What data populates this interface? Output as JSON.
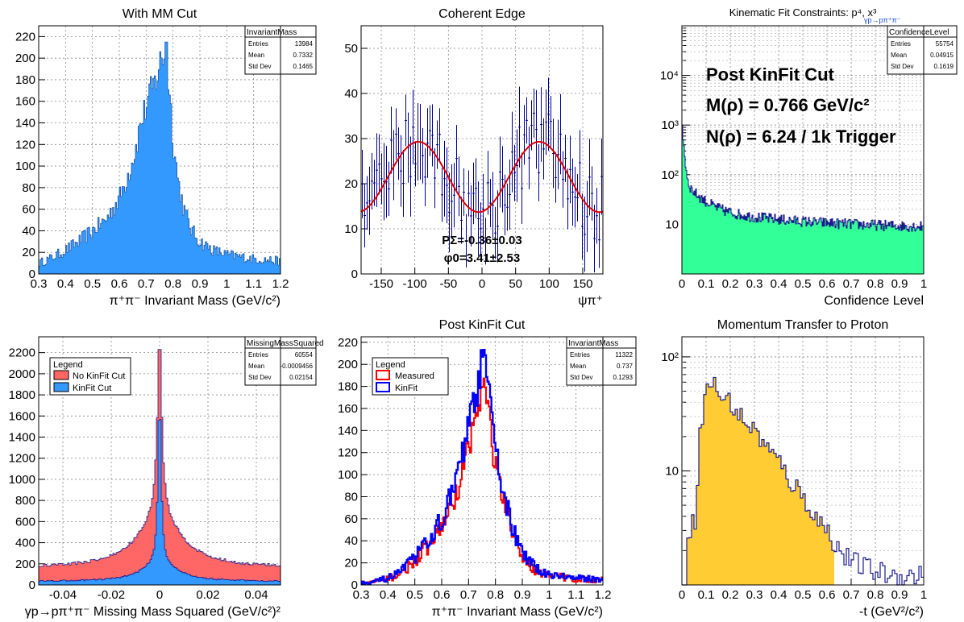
{
  "chart_data": [
    {
      "type": "bar",
      "title": "With MM Cut",
      "xlabel": "π⁺π⁻ Invariant Mass (GeV/c²)",
      "ylabel": "",
      "xlim": [
        0.3,
        1.2
      ],
      "ylim": [
        0,
        230
      ],
      "xticks": [
        "0.3",
        "0.4",
        "0.5",
        "0.6",
        "0.7",
        "0.8",
        "0.9",
        "1",
        "1.1",
        "1.2"
      ],
      "yticks": [
        "0",
        "20",
        "40",
        "60",
        "80",
        "100",
        "120",
        "140",
        "160",
        "180",
        "200",
        "220"
      ],
      "grid": true,
      "fill": "#3399ff",
      "stats": {
        "title": "InvariantMass",
        "rows": [
          [
            "Entries",
            "13984"
          ],
          [
            "Mean",
            "0.7332"
          ],
          [
            "Std Dev",
            "0.1465"
          ]
        ]
      },
      "curve": [
        [
          0.3,
          10
        ],
        [
          0.35,
          15
        ],
        [
          0.4,
          22
        ],
        [
          0.45,
          30
        ],
        [
          0.5,
          40
        ],
        [
          0.55,
          50
        ],
        [
          0.6,
          70
        ],
        [
          0.63,
          90
        ],
        [
          0.66,
          115
        ],
        [
          0.68,
          140
        ],
        [
          0.7,
          155
        ],
        [
          0.72,
          170
        ],
        [
          0.74,
          182
        ],
        [
          0.75,
          195
        ],
        [
          0.76,
          200
        ],
        [
          0.77,
          205
        ],
        [
          0.78,
          190
        ],
        [
          0.79,
          160
        ],
        [
          0.8,
          125
        ],
        [
          0.82,
          85
        ],
        [
          0.84,
          60
        ],
        [
          0.87,
          40
        ],
        [
          0.9,
          30
        ],
        [
          0.95,
          22
        ],
        [
          1.0,
          18
        ],
        [
          1.1,
          14
        ],
        [
          1.2,
          12
        ]
      ],
      "peak": 215
    },
    {
      "type": "scatter",
      "title": "Coherent Edge",
      "xlabel": "ψπ⁺",
      "xlim": [
        -180,
        180
      ],
      "ylim": [
        0,
        55
      ],
      "xticks": [
        "-150",
        "-100",
        "-50",
        "0",
        "50",
        "100",
        "150"
      ],
      "yticks": [
        "0",
        "10",
        "20",
        "30",
        "40",
        "50"
      ],
      "grid": true,
      "fit": {
        "amplitude": 7.8,
        "offset": 21.5,
        "phi_deg": -5
      },
      "points": [
        [
          -175,
          17
        ],
        [
          -165,
          19
        ],
        [
          -155,
          22
        ],
        [
          -145,
          26
        ],
        [
          -135,
          24
        ],
        [
          -125,
          28
        ],
        [
          -115,
          30
        ],
        [
          -105,
          32
        ],
        [
          -95,
          31
        ],
        [
          -85,
          27
        ],
        [
          -75,
          28
        ],
        [
          -65,
          26
        ],
        [
          -55,
          22
        ],
        [
          -45,
          20
        ],
        [
          -35,
          18
        ],
        [
          -25,
          15
        ],
        [
          -15,
          14
        ],
        [
          -5,
          13
        ],
        [
          5,
          12
        ],
        [
          15,
          15
        ],
        [
          25,
          17
        ],
        [
          35,
          20
        ],
        [
          45,
          22
        ],
        [
          55,
          25
        ],
        [
          65,
          30
        ],
        [
          75,
          31
        ],
        [
          85,
          32
        ],
        [
          95,
          29
        ],
        [
          105,
          27
        ],
        [
          115,
          23
        ],
        [
          125,
          20
        ],
        [
          135,
          18
        ],
        [
          145,
          16
        ],
        [
          155,
          15
        ],
        [
          165,
          13
        ],
        [
          175,
          12
        ]
      ],
      "annotations": [
        "PΣ=-0.36±0.03",
        "φ0=3.41±2.53"
      ]
    },
    {
      "type": "bar",
      "title": "Kinematic Fit Constraints: p⁴, x³",
      "title_sub": "γp→pπ⁺π⁻",
      "xlabel": "Confidence Level",
      "xlim": [
        0,
        1
      ],
      "yscale": "log",
      "ylim": [
        1,
        100000
      ],
      "xticks": [
        "0",
        "0.1",
        "0.2",
        "0.3",
        "0.4",
        "0.5",
        "0.6",
        "0.7",
        "0.8",
        "0.9",
        "1"
      ],
      "ytick_labels": [
        "10",
        "10²",
        "10³",
        "10⁴"
      ],
      "grid": true,
      "fill": "#33ff99",
      "stats": {
        "title": "ConfidenceLevel",
        "rows": [
          [
            "Entries",
            "55754"
          ],
          [
            "Mean",
            "0.04915"
          ],
          [
            "Std Dev",
            "0.1619"
          ]
        ]
      },
      "annotations": [
        "Post KinFit Cut",
        "M(ρ) = 0.766 GeV/c²",
        "N(ρ) = 6.24 / 1k Trigger"
      ]
    },
    {
      "type": "bar",
      "title": "",
      "xlabel": "γp→pπ⁺π⁻ Missing Mass Squared (GeV/c²)²",
      "xlim": [
        -0.05,
        0.05
      ],
      "ylim": [
        0,
        2350
      ],
      "xticks": [
        "-0.04",
        "-0.02",
        "0",
        "0.02",
        "0.04"
      ],
      "yticks": [
        "0",
        "200",
        "400",
        "600",
        "800",
        "1000",
        "1200",
        "1400",
        "1600",
        "1800",
        "2000",
        "2200"
      ],
      "grid": true,
      "legend": {
        "title": "Legend",
        "entries": [
          {
            "name": "No KinFit Cut",
            "color": "#ff6666"
          },
          {
            "name": "KinFit Cut",
            "color": "#3399ff"
          }
        ]
      },
      "stats": {
        "title": "MissingMassSquared",
        "rows": [
          [
            "Entries",
            "60554"
          ],
          [
            "Mean",
            "-0.0009456"
          ],
          [
            "Std Dev",
            "0.02154"
          ]
        ]
      }
    },
    {
      "type": "line",
      "title": "Post KinFit Cut",
      "xlabel": "π⁺π⁻ Invariant Mass (GeV/c²)",
      "xlim": [
        0.3,
        1.2
      ],
      "ylim": [
        0,
        225
      ],
      "xticks": [
        "0.3",
        "0.4",
        "0.5",
        "0.6",
        "0.7",
        "0.8",
        "0.9",
        "1",
        "1.1",
        "1.2"
      ],
      "yticks": [
        "0",
        "20",
        "40",
        "60",
        "80",
        "100",
        "120",
        "140",
        "160",
        "180",
        "200",
        "220"
      ],
      "grid": true,
      "legend": {
        "title": "Legend",
        "entries": [
          {
            "name": "Measured",
            "color": "#ff0000"
          },
          {
            "name": "KinFit",
            "color": "#0000ff"
          }
        ]
      },
      "stats": {
        "title": "InvariantMass",
        "rows": [
          [
            "Entries",
            "11322"
          ],
          [
            "Mean",
            "0.737"
          ],
          [
            "Std Dev",
            "0.1293"
          ]
        ]
      },
      "curve": [
        [
          0.3,
          2
        ],
        [
          0.35,
          3
        ],
        [
          0.4,
          6
        ],
        [
          0.45,
          12
        ],
        [
          0.5,
          25
        ],
        [
          0.55,
          40
        ],
        [
          0.6,
          60
        ],
        [
          0.65,
          90
        ],
        [
          0.68,
          120
        ],
        [
          0.7,
          145
        ],
        [
          0.72,
          165
        ],
        [
          0.74,
          185
        ],
        [
          0.75,
          200
        ],
        [
          0.76,
          205
        ],
        [
          0.77,
          190
        ],
        [
          0.79,
          140
        ],
        [
          0.81,
          110
        ],
        [
          0.83,
          85
        ],
        [
          0.86,
          55
        ],
        [
          0.9,
          28
        ],
        [
          0.95,
          15
        ],
        [
          1.0,
          10
        ],
        [
          1.1,
          6
        ],
        [
          1.2,
          5
        ]
      ]
    },
    {
      "type": "bar",
      "title": "Momentum Transfer to Proton",
      "xlabel": "-t (GeV²/c²)",
      "xlim": [
        0,
        1
      ],
      "yscale": "log",
      "ylim": [
        1,
        150
      ],
      "xticks": [
        "0",
        "0.1",
        "0.2",
        "0.3",
        "0.4",
        "0.5",
        "0.6",
        "0.7",
        "0.8",
        "0.9",
        "1"
      ],
      "ytick_labels": [
        "10",
        "10²"
      ],
      "grid": true,
      "fill": "#ffcc33",
      "curve": [
        [
          0.03,
          3
        ],
        [
          0.06,
          4
        ],
        [
          0.08,
          25
        ],
        [
          0.1,
          50
        ],
        [
          0.12,
          60
        ],
        [
          0.14,
          55
        ],
        [
          0.16,
          45
        ],
        [
          0.2,
          40
        ],
        [
          0.24,
          30
        ],
        [
          0.28,
          25
        ],
        [
          0.32,
          20
        ],
        [
          0.36,
          15
        ],
        [
          0.4,
          12
        ],
        [
          0.45,
          8
        ],
        [
          0.5,
          6
        ],
        [
          0.55,
          4
        ],
        [
          0.6,
          3
        ],
        [
          0.65,
          2
        ],
        [
          0.7,
          1.6
        ],
        [
          0.8,
          1.3
        ],
        [
          0.9,
          1.2
        ]
      ]
    }
  ]
}
